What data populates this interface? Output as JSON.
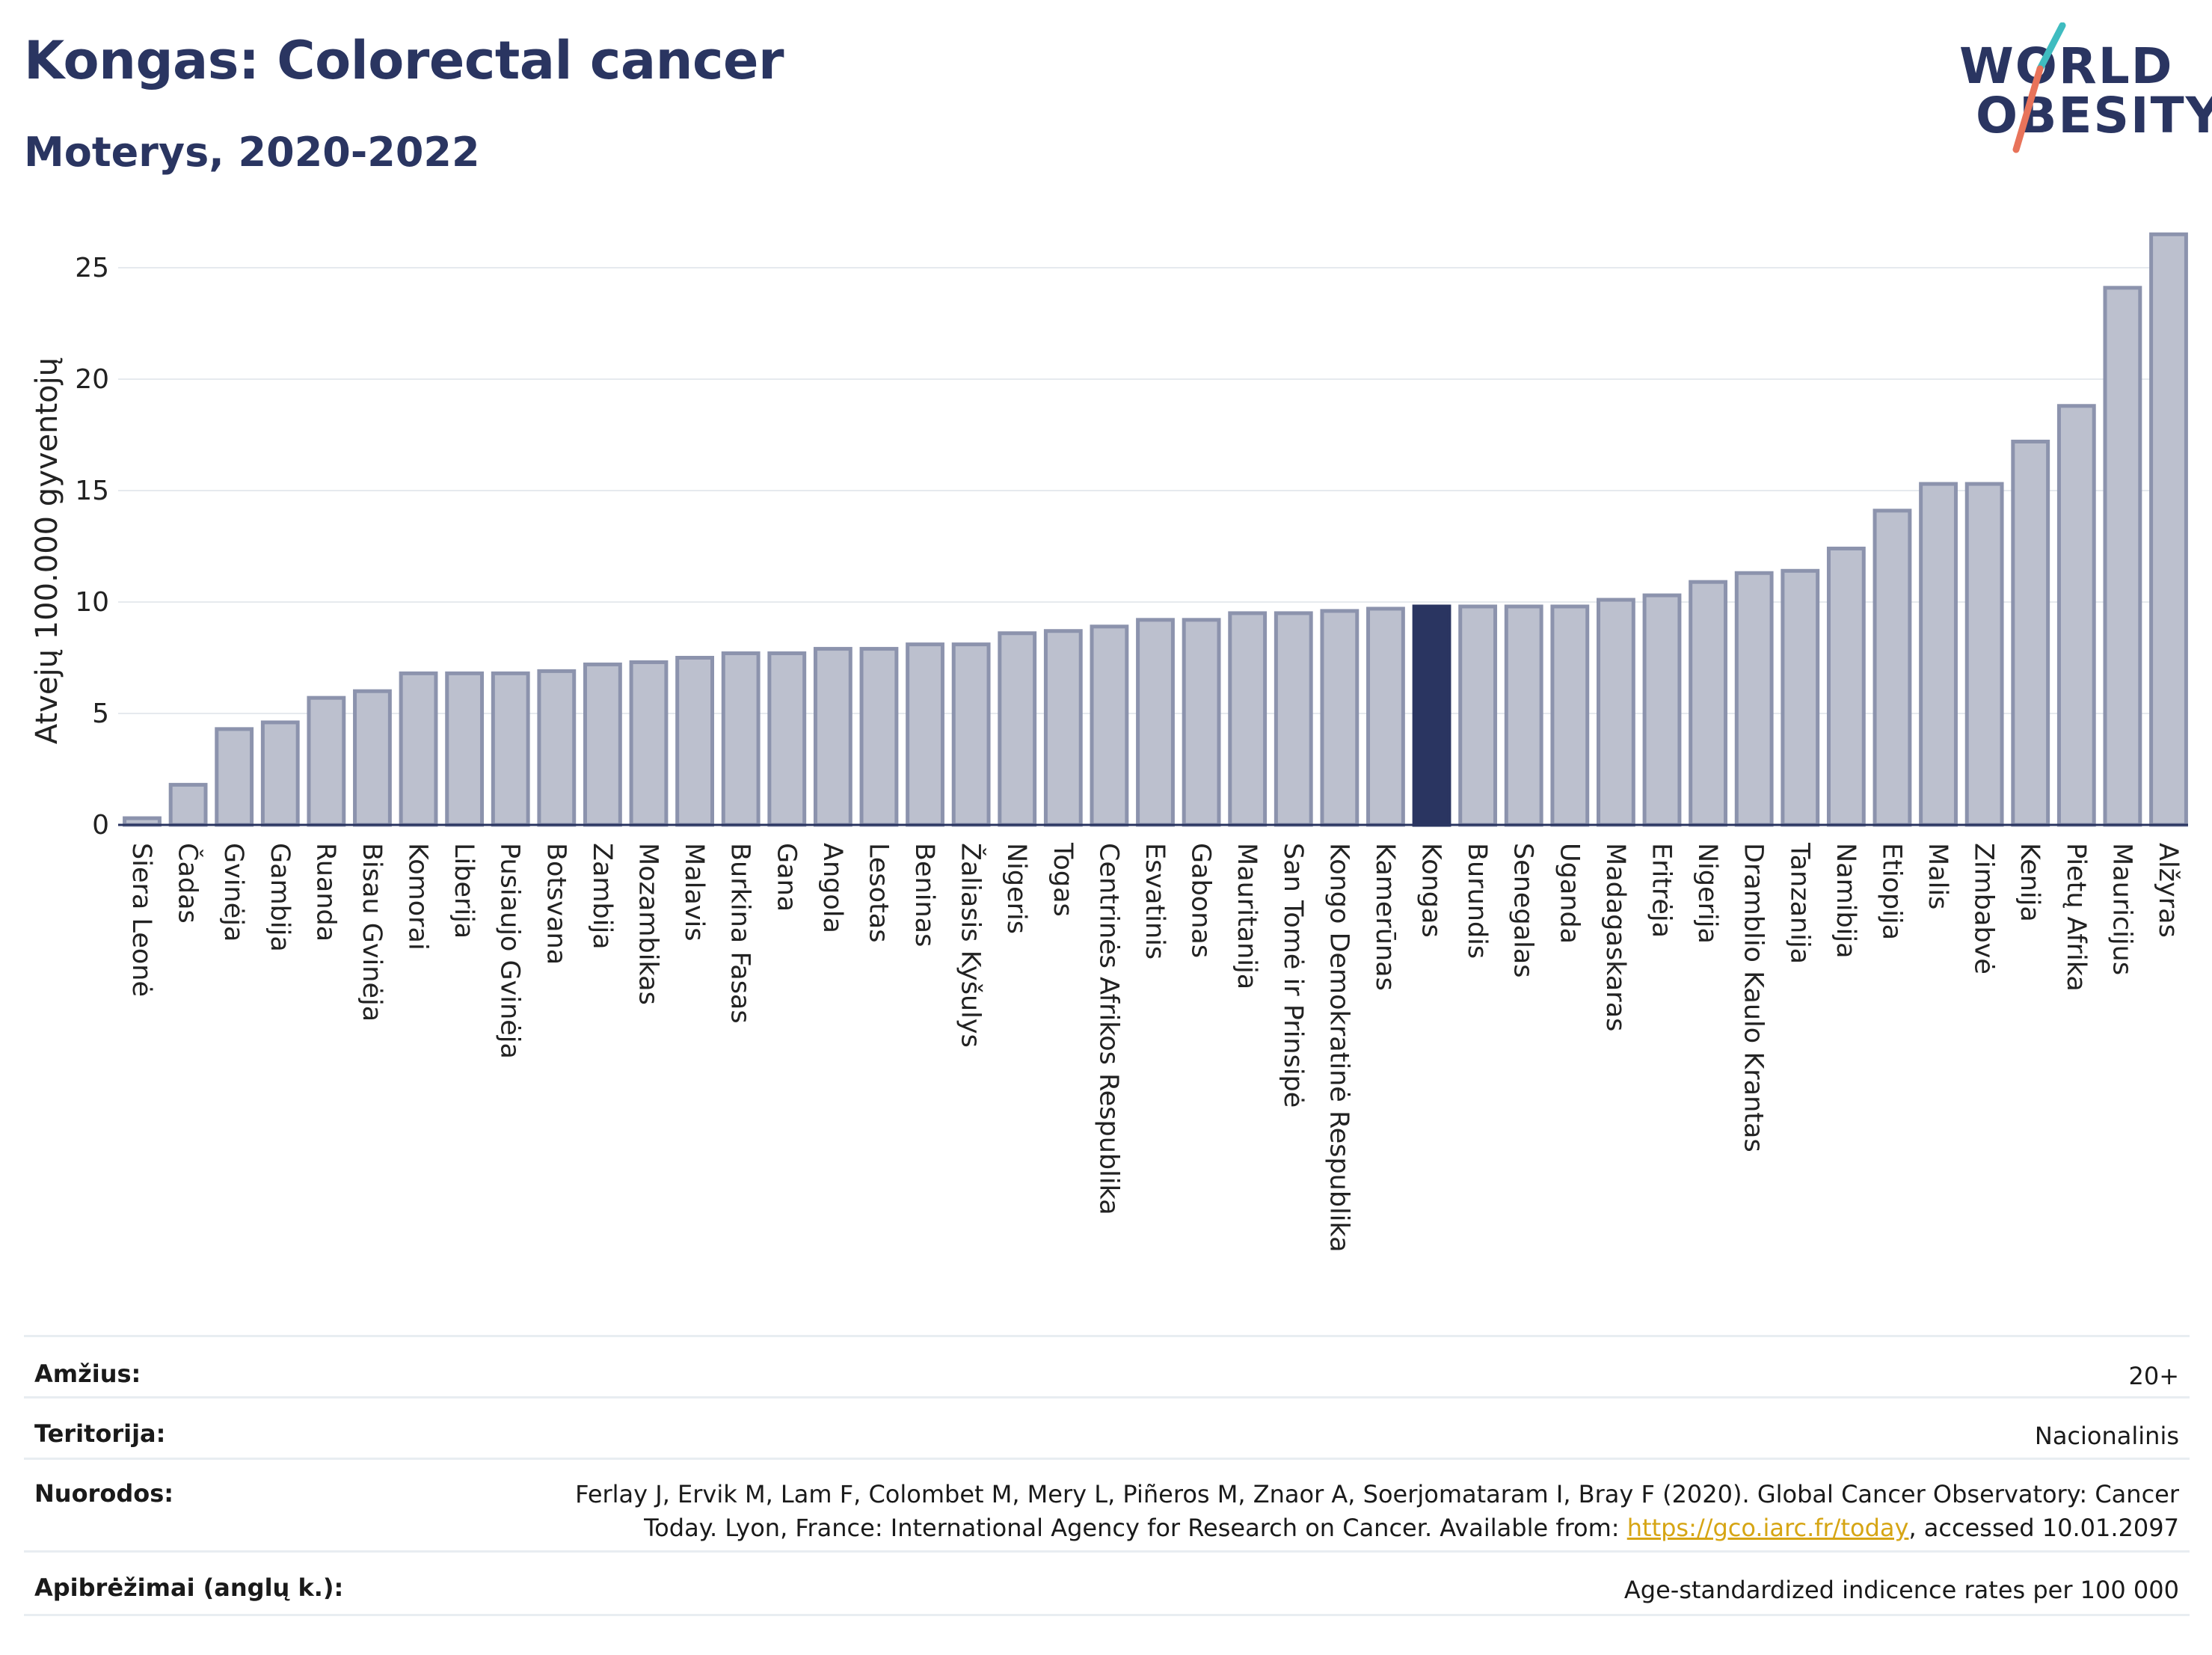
{
  "header": {
    "title": "Kongas: Colorectal cancer",
    "subtitle": "Moterys, 2020-2022"
  },
  "logo": {
    "line1": "WORLD",
    "line2": "OBESITY",
    "slash_colors": [
      "#3fbcc0",
      "#e8735a"
    ]
  },
  "chart_data": {
    "type": "bar",
    "ylabel": "Atvejų 100.000 gyventojų",
    "xlabel": "",
    "ylim": [
      0,
      27
    ],
    "yticks": [
      0,
      5,
      10,
      15,
      20,
      25
    ],
    "grid": true,
    "highlight": "Kongas",
    "colors": {
      "bar": "#bcc0ce",
      "bar_edge": "#8c93ad",
      "highlight": "#2a3561"
    },
    "categories": [
      "Siera Leonė",
      "Čadas",
      "Gvinėja",
      "Gambija",
      "Ruanda",
      "Bisau Gvinėja",
      "Komorai",
      "Liberija",
      "Pusiaujo Gvinėja",
      "Botsvana",
      "Zambija",
      "Mozambikas",
      "Malavis",
      "Burkina Fasas",
      "Gana",
      "Angola",
      "Lesotas",
      "Beninas",
      "Žaliasis Kyšulys",
      "Nigeris",
      "Togas",
      "Centrinės Afrikos Respublika",
      "Esvatinis",
      "Gabonas",
      "Mauritanija",
      "San Tomė ir Prinsipė",
      "Kongo Demokratinė Respublika",
      "Kamerūnas",
      "Kongas",
      "Burundis",
      "Senegalas",
      "Uganda",
      "Madagaskaras",
      "Eritrėja",
      "Nigerija",
      "Dramblio Kaulo Krantas",
      "Tanzanija",
      "Namibija",
      "Etiopija",
      "Malis",
      "Zimbabvė",
      "Kenija",
      "Pietų Afrika",
      "Mauricijus",
      "Alžyras"
    ],
    "values": [
      0.3,
      1.8,
      4.3,
      4.6,
      5.7,
      6.0,
      6.8,
      6.8,
      6.8,
      6.9,
      7.2,
      7.3,
      7.5,
      7.7,
      7.7,
      7.9,
      7.9,
      8.1,
      8.1,
      8.6,
      8.7,
      8.9,
      9.2,
      9.2,
      9.5,
      9.5,
      9.6,
      9.7,
      9.8,
      9.8,
      9.8,
      9.8,
      10.1,
      10.3,
      10.9,
      11.3,
      11.4,
      12.4,
      14.1,
      15.3,
      15.3,
      17.2,
      18.8,
      24.1,
      26.5
    ]
  },
  "meta": {
    "age_label": "Amžius:",
    "age_value": "20+",
    "territory_label": "Teritorija:",
    "territory_value": "Nacionalinis",
    "references_label": "Nuorodos:",
    "references_line1": "Ferlay J, Ervik M, Lam F, Colombet M, Mery L, Piñeros M, Znaor A, Soerjomataram I, Bray F (2020). Global Cancer Observatory: Cancer",
    "references_line2_pre": "Today. Lyon, France: International Agency for Research on Cancer. Available from: ",
    "references_link": "https://gco.iarc.fr/today",
    "references_line2_post": ", accessed 10.01.2097",
    "definitions_label": "Apibrėžimai (anglų k.):",
    "definitions_value": "Age-standardized indicence rates per 100 000"
  }
}
